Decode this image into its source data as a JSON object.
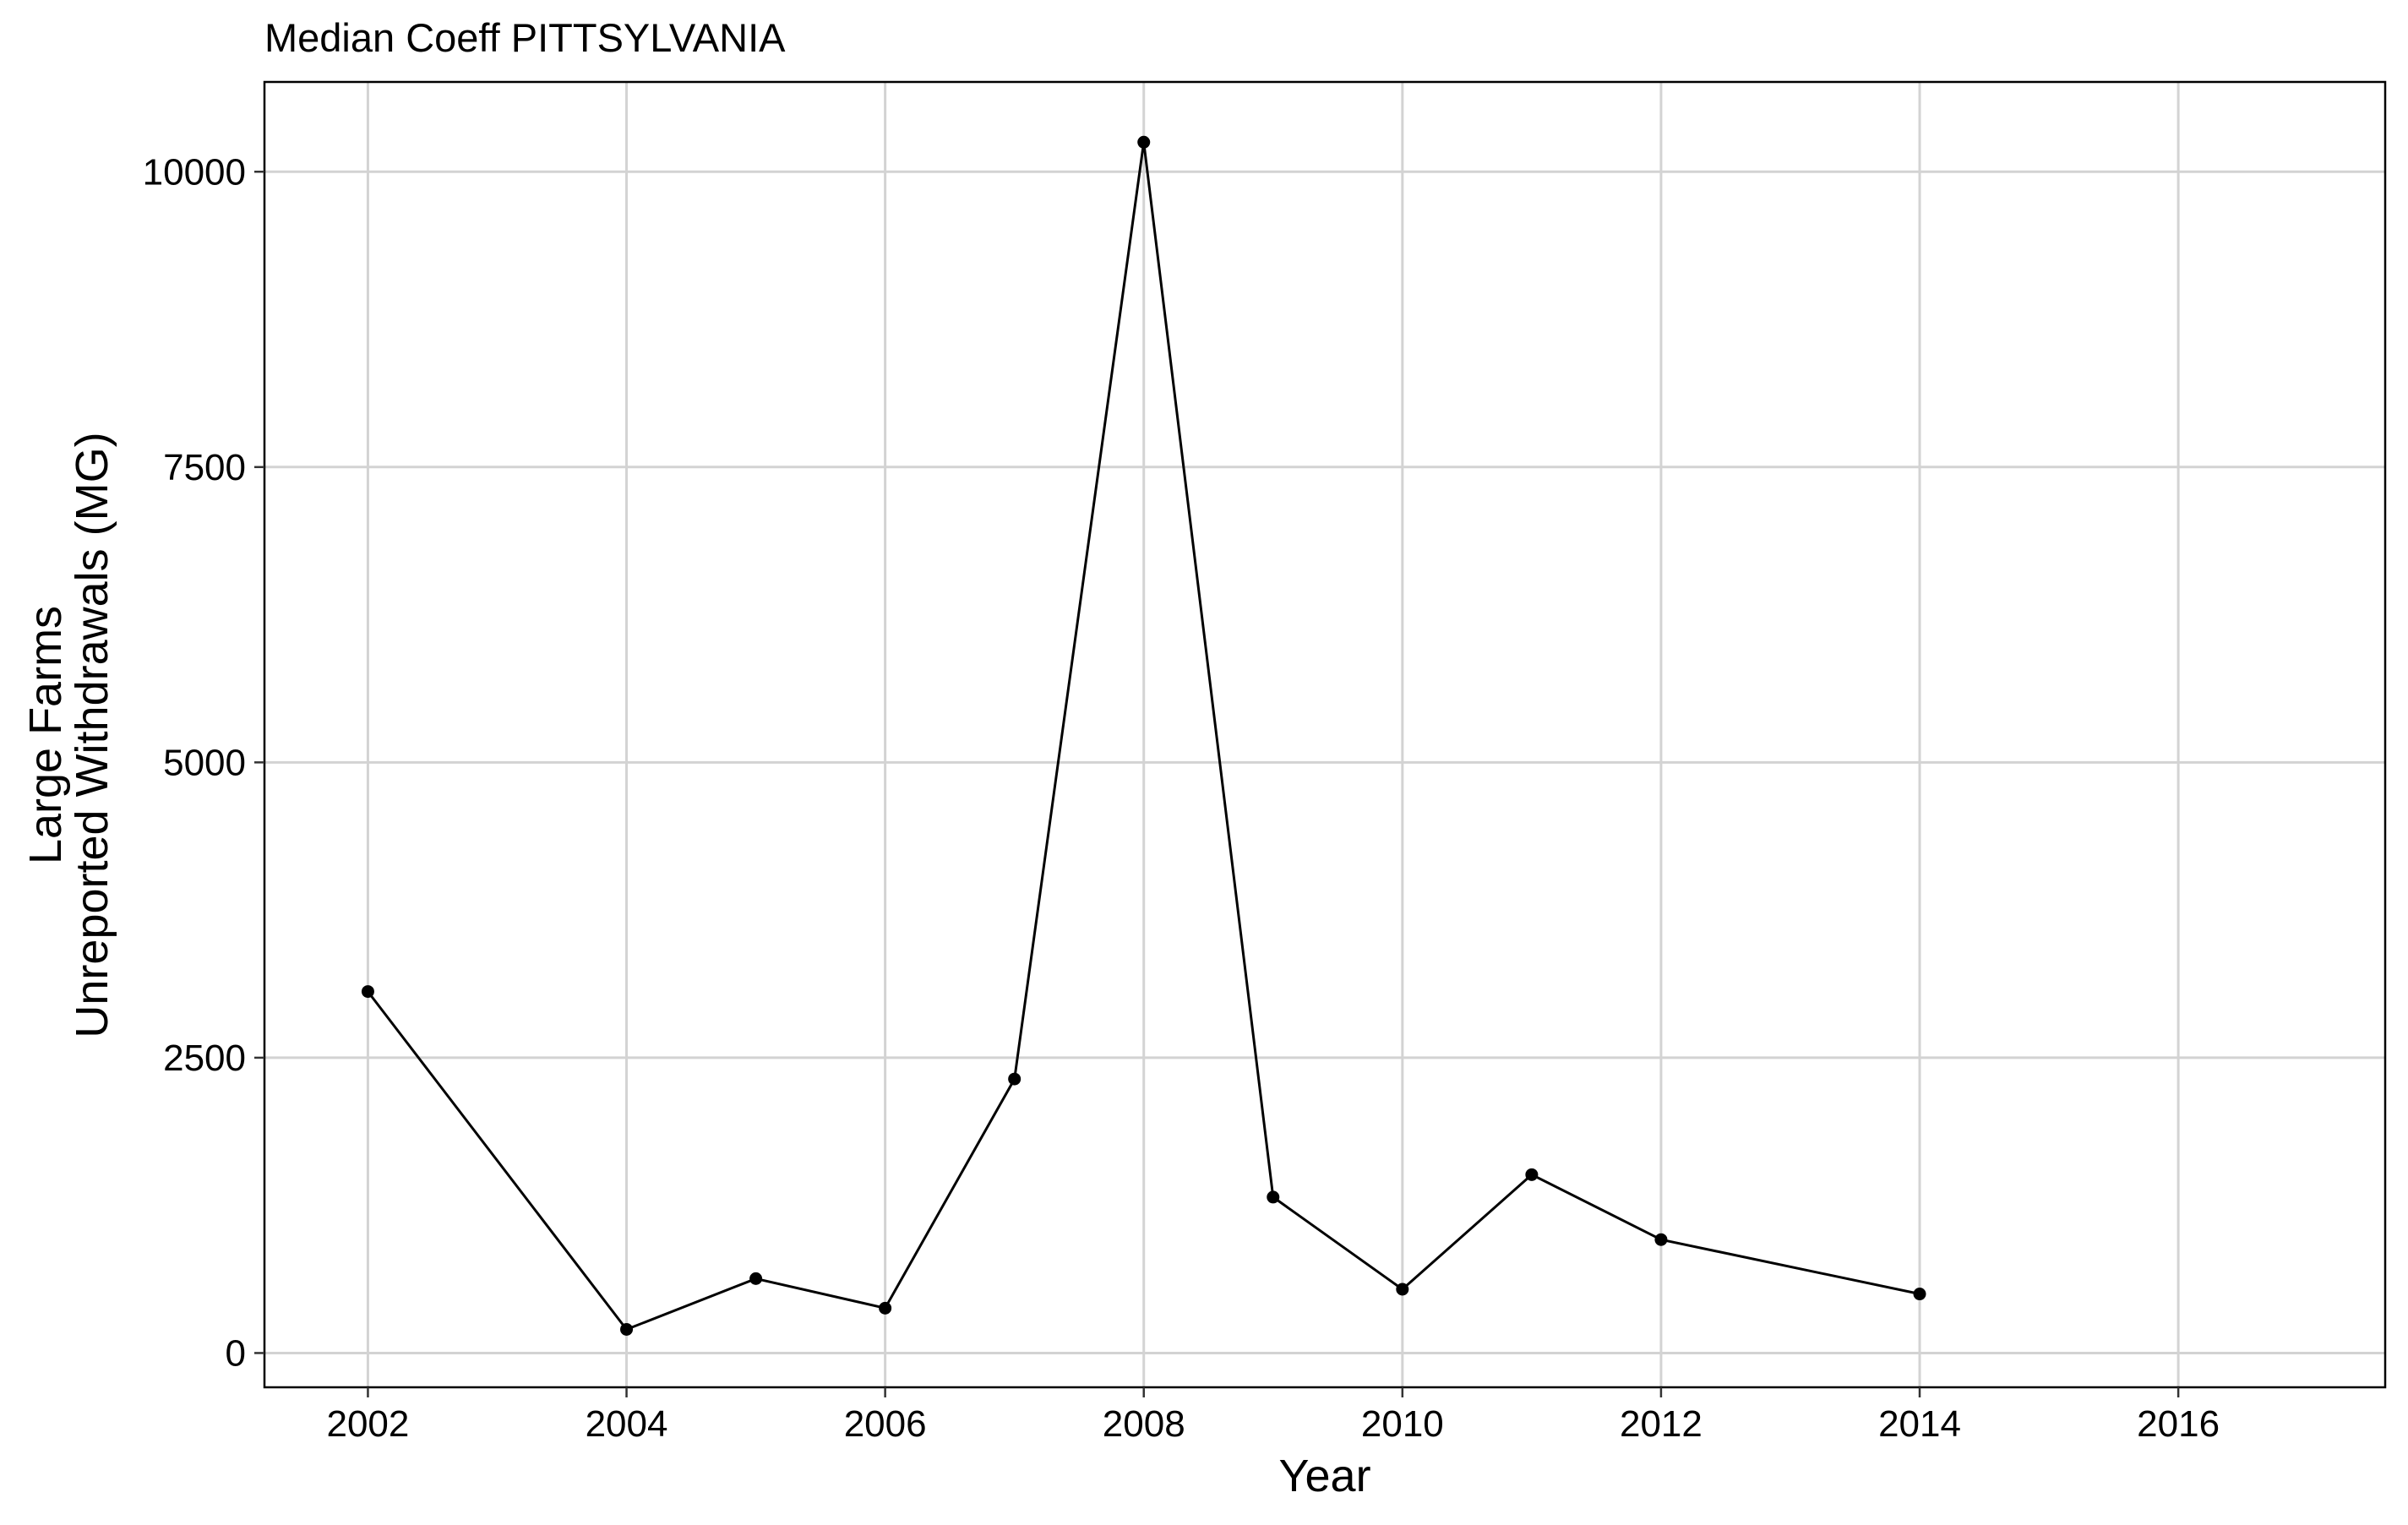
{
  "chart_data": {
    "type": "line",
    "title": "Median Coeff PITTSYLVANIA",
    "xlabel": "Year",
    "ylabel_lines": [
      "Large Farms",
      "Unreported Withdrawals (MG)"
    ],
    "x": [
      2002,
      2004,
      2005,
      2006,
      2007,
      2008,
      2009,
      2010,
      2011,
      2012,
      2014
    ],
    "y": [
      3060,
      200,
      630,
      380,
      2320,
      10250,
      1320,
      540,
      1510,
      960,
      500
    ],
    "xlim": [
      2001.2,
      2017.6
    ],
    "ylim": [
      -290,
      10760
    ],
    "x_ticks": [
      2002,
      2004,
      2006,
      2008,
      2010,
      2012,
      2014,
      2016
    ],
    "y_ticks": [
      0,
      2500,
      5000,
      7500,
      10000
    ],
    "grid": true,
    "legend": "none",
    "colors": {
      "line": "#000000",
      "point": "#000000",
      "grid": "#d3d3d3",
      "panel_border": "#000000",
      "background": "#ffffff"
    }
  }
}
